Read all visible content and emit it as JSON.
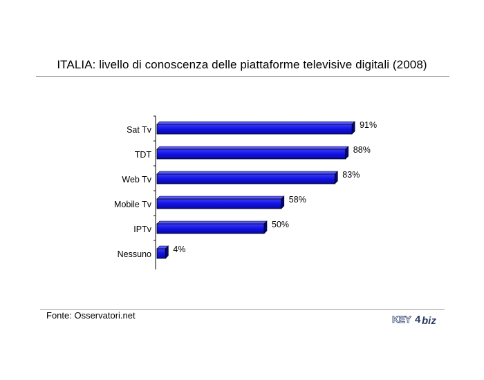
{
  "chart_data": {
    "type": "bar",
    "orientation": "horizontal",
    "title": "ITALIA: livello di conoscenza delle piattaforme televisive digitali (2008)",
    "categories": [
      "Sat Tv",
      "TDT",
      "Web Tv",
      "Mobile Tv",
      "IPTv",
      "Nessuno"
    ],
    "values": [
      91,
      88,
      83,
      58,
      50,
      4
    ],
    "value_labels": [
      "91%",
      "88%",
      "83%",
      "58%",
      "50%",
      "4%"
    ],
    "xlim": [
      0,
      100
    ],
    "grid": false,
    "legend": "none",
    "bar_color": "#1010d8"
  },
  "source": "Fonte: Osservatori.net",
  "logo": {
    "left": "KEY",
    "digit": "4",
    "right": "biz"
  }
}
